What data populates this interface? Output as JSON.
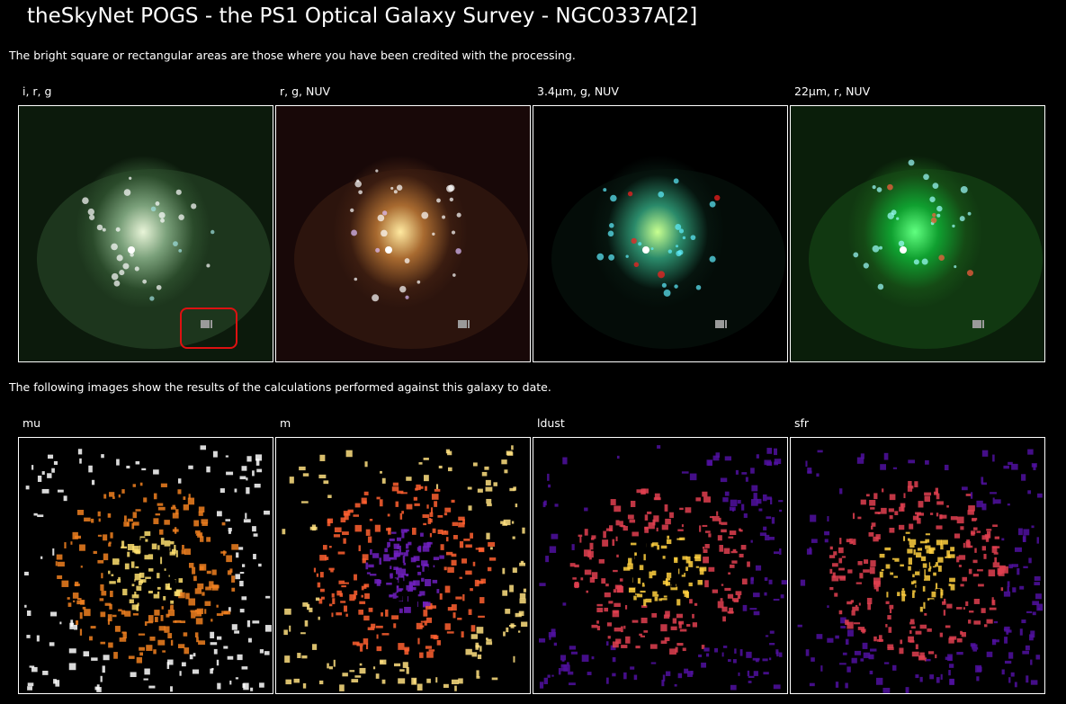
{
  "header": {
    "title": "theSkyNet POGS - the PS1 Optical Galaxy Survey - NGC0337A[2]"
  },
  "intro": "The bright square or rectangular areas are those where you have been credited with the processing.",
  "color_images": [
    {
      "label": "i, r, g"
    },
    {
      "label": "r, g, NUV"
    },
    {
      "label": "3.4μm, g, NUV"
    },
    {
      "label": "22μm, r, NUV"
    }
  ],
  "results_text": "The following images show the results of the calculations performed against this galaxy to date.",
  "result_images": [
    {
      "label": "mu"
    },
    {
      "label": "m"
    },
    {
      "label": "ldust"
    },
    {
      "label": "sfr"
    }
  ]
}
